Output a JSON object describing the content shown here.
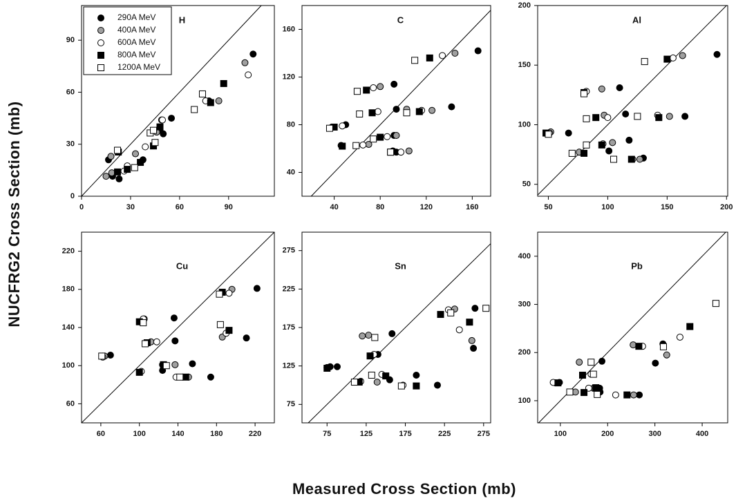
{
  "xlabel": "Measured Cross Section (mb)",
  "ylabel": "NUCFRG2 Cross Section (mb)",
  "legend": {
    "position": "upper left",
    "entries": [
      {
        "name": "290A MeV",
        "marker": "circle",
        "color": "#000000"
      },
      {
        "name": "400A MeV",
        "marker": "circle",
        "color": "#a0a0a0"
      },
      {
        "name": "600A MeV",
        "marker": "circle",
        "color": "#ffffff"
      },
      {
        "name": "800A MeV",
        "marker": "square",
        "color": "#000000"
      },
      {
        "name": "1200A MeV",
        "marker": "square",
        "color": "#ffffff"
      }
    ]
  },
  "chart_data": [
    {
      "type": "scatter",
      "title": "H",
      "diagonal": true,
      "xlim": [
        0,
        118
      ],
      "ylim": [
        0,
        110
      ],
      "xticks": [
        0,
        30,
        60,
        90
      ],
      "yticks": [
        0,
        30,
        60,
        90
      ],
      "series": [
        {
          "x": [
            16.5,
            19,
            23,
            37.6,
            48,
            50,
            55,
            78,
            105
          ],
          "y": [
            21,
            11.5,
            10,
            21,
            38.5,
            36,
            45,
            55,
            82
          ]
        },
        {
          "x": [
            15,
            18.5,
            18,
            33,
            46,
            49,
            84,
            100
          ],
          "y": [
            11.5,
            13.5,
            23,
            24.5,
            37,
            44,
            55,
            77
          ]
        },
        {
          "x": [
            26,
            28,
            39,
            49.5,
            76,
            102
          ],
          "y": [
            14.5,
            17.5,
            28.5,
            44,
            55,
            70
          ]
        },
        {
          "x": [
            22,
            28,
            36,
            44,
            48,
            79,
            87,
            22.5
          ],
          "y": [
            14,
            15.5,
            19.5,
            29,
            40,
            54,
            65,
            25.5
          ]
        },
        {
          "x": [
            22,
            32.5,
            42,
            45,
            44,
            69,
            74
          ],
          "y": [
            26.5,
            16.5,
            36.5,
            31,
            38,
            50,
            59
          ]
        }
      ]
    },
    {
      "type": "scatter",
      "title": "C",
      "diagonal": true,
      "xlim": [
        12,
        176
      ],
      "ylim": [
        20,
        180
      ],
      "xticks": [
        40,
        80,
        120,
        160
      ],
      "yticks": [
        40,
        80,
        120,
        160
      ],
      "series": [
        {
          "x": [
            38,
            50,
            46,
            92,
            94,
            92,
            142,
            165,
            91,
            94
          ],
          "y": [
            78,
            80,
            62.6,
            114,
            93,
            71,
            95,
            142,
            58,
            57
          ]
        },
        {
          "x": [
            80,
            70,
            103,
            125,
            145,
            94,
            105
          ],
          "y": [
            112,
            63.5,
            93,
            92,
            140,
            71,
            58
          ]
        },
        {
          "x": [
            74,
            78,
            86,
            134,
            47,
            65,
            116,
            98
          ],
          "y": [
            111,
            91,
            70,
            138,
            79,
            63,
            92,
            57
          ]
        },
        {
          "x": [
            40,
            68,
            73,
            80,
            114,
            123,
            47,
            89
          ],
          "y": [
            78,
            109,
            90,
            69.5,
            91,
            136,
            62,
            57
          ]
        },
        {
          "x": [
            36,
            60,
            62,
            74,
            103,
            110,
            59,
            89
          ],
          "y": [
            77,
            108,
            89,
            68,
            90,
            134,
            62.5,
            57
          ]
        }
      ]
    },
    {
      "type": "scatter",
      "title": "Al",
      "diagonal": true,
      "xlim": [
        41,
        201
      ],
      "ylim": [
        40,
        200
      ],
      "xticks": [
        50,
        100,
        150,
        200
      ],
      "yticks": [
        50,
        100,
        150,
        200
      ],
      "series": [
        {
          "x": [
            67,
            110,
            101,
            118,
            115,
            130,
            165,
            192
          ],
          "y": [
            93,
            131,
            78,
            87,
            109,
            72,
            107,
            159
          ]
        },
        {
          "x": [
            52,
            95,
            76,
            97,
            104,
            127,
            152,
            163
          ],
          "y": [
            94,
            130,
            77,
            108,
            85,
            71,
            107,
            158
          ]
        },
        {
          "x": [
            51,
            82,
            96,
            100,
            121,
            142,
            155
          ],
          "y": [
            93,
            128,
            84,
            106,
            71,
            108,
            156
          ]
        },
        {
          "x": [
            48,
            80,
            80,
            95,
            90,
            120,
            143,
            150
          ],
          "y": [
            93,
            127,
            76,
            83,
            106,
            71,
            106,
            155
          ]
        },
        {
          "x": [
            50,
            80,
            70,
            82,
            82,
            105,
            125,
            131
          ],
          "y": [
            92,
            126,
            76,
            83,
            105,
            71,
            107,
            153
          ]
        }
      ]
    },
    {
      "type": "scatter",
      "title": "Cu",
      "diagonal": true,
      "xlim": [
        40,
        240
      ],
      "ylim": [
        40,
        240
      ],
      "xticks": [
        60,
        100,
        140,
        180,
        220
      ],
      "yticks": [
        60,
        100,
        140,
        180,
        220
      ],
      "series": [
        {
          "x": [
            62,
            70,
            124,
            136,
            137,
            155,
            174,
            211,
            222,
            124
          ],
          "y": [
            110,
            111,
            95,
            150,
            126,
            102,
            88,
            129,
            181,
            101
          ]
        },
        {
          "x": [
            64,
            105,
            112,
            137,
            151,
            186,
            196
          ],
          "y": [
            110,
            149,
            125,
            101,
            88,
            130,
            180
          ]
        },
        {
          "x": [
            62,
            104,
            118,
            138,
            102,
            190,
            193
          ],
          "y": [
            109,
            149,
            125,
            88,
            94,
            134,
            176
          ]
        },
        {
          "x": [
            100,
            108,
            125,
            148,
            100,
            193,
            186
          ],
          "y": [
            146,
            124,
            101,
            88,
            93,
            137,
            177
          ]
        },
        {
          "x": [
            61,
            104,
            106,
            128,
            142,
            183,
            184
          ],
          "y": [
            110,
            145,
            123,
            100,
            88,
            175,
            143
          ]
        }
      ]
    },
    {
      "type": "scatter",
      "title": "Sn",
      "diagonal": true,
      "xlim": [
        43,
        284
      ],
      "ylim": [
        51,
        299
      ],
      "xticks": [
        75,
        125,
        175,
        225,
        275
      ],
      "yticks": [
        75,
        125,
        175,
        225,
        275
      ],
      "series": [
        {
          "x": [
            79,
            88,
            140,
            155,
            158,
            189,
            216,
            262,
            264
          ],
          "y": [
            124,
            124,
            140,
            107,
            167,
            113,
            100,
            148,
            200
          ]
        },
        {
          "x": [
            75,
            120,
            128,
            139,
            238,
            260
          ],
          "y": [
            123,
            164,
            165,
            104,
            199,
            158
          ]
        },
        {
          "x": [
            118,
            135,
            145,
            172,
            230,
            244
          ],
          "y": [
            105,
            140,
            114,
            100,
            198,
            172
          ]
        },
        {
          "x": [
            75,
            116,
            130,
            150,
            189,
            220,
            257
          ],
          "y": [
            122,
            104,
            138,
            112,
            99,
            192,
            182
          ]
        },
        {
          "x": [
            110,
            132,
            136,
            170,
            233,
            278
          ],
          "y": [
            104,
            113,
            162,
            99,
            194,
            200
          ]
        }
      ]
    },
    {
      "type": "scatter",
      "title": "Pb",
      "diagonal": true,
      "xlim": [
        52,
        454
      ],
      "ylim": [
        54,
        450
      ],
      "xticks": [
        100,
        200,
        300,
        400
      ],
      "yticks": [
        100,
        200,
        300,
        400
      ],
      "series": [
        {
          "x": [
            98,
            183,
            188,
            184,
            267,
            301,
            317
          ],
          "y": [
            138,
            126,
            182,
            118,
            112,
            178,
            218
          ]
        },
        {
          "x": [
            90,
            140,
            132,
            170,
            254,
            255,
            325
          ],
          "y": [
            137,
            180,
            118,
            126,
            216,
            112,
            195
          ]
        },
        {
          "x": [
            85,
            165,
            160,
            217,
            274,
            353
          ],
          "y": [
            138,
            155,
            126,
            112,
            213,
            232
          ]
        },
        {
          "x": [
            95,
            147,
            150,
            175,
            241,
            266,
            374
          ],
          "y": [
            137,
            153,
            117,
            127,
            112,
            213,
            254
          ]
        },
        {
          "x": [
            120,
            165,
            170,
            178,
            318,
            429
          ],
          "y": [
            118,
            180,
            155,
            113,
            212,
            302
          ]
        }
      ]
    }
  ]
}
